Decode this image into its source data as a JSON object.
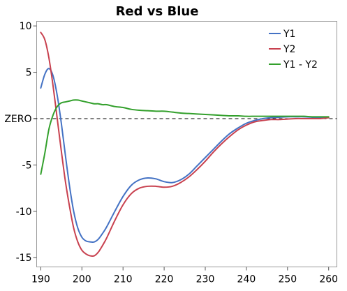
{
  "chart_data": {
    "type": "line",
    "title": "Red vs Blue",
    "xlabel": "",
    "ylabel": "",
    "xlim": [
      189,
      262
    ],
    "ylim": [
      -16,
      10.5
    ],
    "x_ticks": [
      190,
      200,
      210,
      220,
      230,
      240,
      250,
      260
    ],
    "y_ticks": [
      {
        "value": 10,
        "label": "10"
      },
      {
        "value": 5,
        "label": "5"
      },
      {
        "value": 0,
        "label": "ZERO"
      },
      {
        "value": -5,
        "label": "-5"
      },
      {
        "value": -10,
        "label": "-10"
      },
      {
        "value": -15,
        "label": "-15"
      }
    ],
    "reference_line": {
      "y": 0,
      "style": "dashed",
      "color": "#000000"
    },
    "grid": false,
    "legend": {
      "position": "top-right"
    },
    "series": [
      {
        "name": "Y1",
        "color": "#4472C4",
        "x": [
          190,
          191,
          192,
          193,
          194,
          195,
          196,
          197,
          198,
          199,
          200,
          201,
          202,
          203,
          204,
          205,
          206,
          208,
          210,
          212,
          214,
          216,
          218,
          220,
          222,
          224,
          226,
          228,
          230,
          232,
          234,
          236,
          238,
          240,
          242,
          244,
          246,
          248,
          250,
          252,
          254,
          256,
          258,
          260
        ],
        "y": [
          3.3,
          4.8,
          5.4,
          4.6,
          2.5,
          -0.5,
          -4.0,
          -7.3,
          -10.0,
          -11.8,
          -12.8,
          -13.2,
          -13.3,
          -13.3,
          -13.0,
          -12.4,
          -11.7,
          -10.0,
          -8.4,
          -7.2,
          -6.6,
          -6.4,
          -6.5,
          -6.8,
          -6.9,
          -6.6,
          -6.0,
          -5.1,
          -4.2,
          -3.3,
          -2.4,
          -1.6,
          -1.0,
          -0.5,
          -0.2,
          0.0,
          0.1,
          0.15,
          0.2,
          0.2,
          0.2,
          0.15,
          0.1,
          0.1
        ]
      },
      {
        "name": "Y2",
        "color": "#C8414F",
        "x": [
          190,
          191,
          192,
          193,
          194,
          195,
          196,
          197,
          198,
          199,
          200,
          201,
          202,
          203,
          204,
          205,
          206,
          208,
          210,
          212,
          214,
          216,
          218,
          220,
          222,
          224,
          226,
          228,
          230,
          232,
          234,
          236,
          238,
          240,
          242,
          244,
          246,
          248,
          250,
          252,
          254,
          256,
          258,
          260
        ],
        "y": [
          9.3,
          8.5,
          6.5,
          3.5,
          0.0,
          -3.5,
          -6.8,
          -9.5,
          -11.8,
          -13.3,
          -14.2,
          -14.6,
          -14.8,
          -14.8,
          -14.4,
          -13.7,
          -12.9,
          -11.0,
          -9.3,
          -8.1,
          -7.5,
          -7.3,
          -7.3,
          -7.4,
          -7.3,
          -6.9,
          -6.3,
          -5.5,
          -4.6,
          -3.6,
          -2.7,
          -1.9,
          -1.2,
          -0.7,
          -0.35,
          -0.2,
          -0.1,
          -0.1,
          -0.05,
          0.0,
          0.0,
          0.0,
          0.0,
          0.1
        ]
      },
      {
        "name": "Y1 - Y2",
        "color": "#33A02C",
        "x": [
          190,
          191,
          192,
          193,
          194,
          195,
          196,
          197,
          198,
          199,
          200,
          201,
          202,
          203,
          204,
          205,
          206,
          208,
          210,
          212,
          214,
          216,
          218,
          220,
          222,
          224,
          226,
          228,
          230,
          232,
          234,
          236,
          238,
          240,
          242,
          244,
          246,
          248,
          250,
          252,
          254,
          256,
          258,
          260
        ],
        "y": [
          -6.0,
          -3.7,
          -1.1,
          0.4,
          1.3,
          1.7,
          1.8,
          1.9,
          2.0,
          2.0,
          1.9,
          1.8,
          1.7,
          1.6,
          1.6,
          1.5,
          1.5,
          1.3,
          1.2,
          1.0,
          0.9,
          0.85,
          0.8,
          0.8,
          0.7,
          0.6,
          0.55,
          0.5,
          0.45,
          0.4,
          0.35,
          0.3,
          0.3,
          0.25,
          0.25,
          0.25,
          0.25,
          0.25,
          0.25,
          0.25,
          0.25,
          0.2,
          0.2,
          0.2
        ]
      }
    ]
  }
}
